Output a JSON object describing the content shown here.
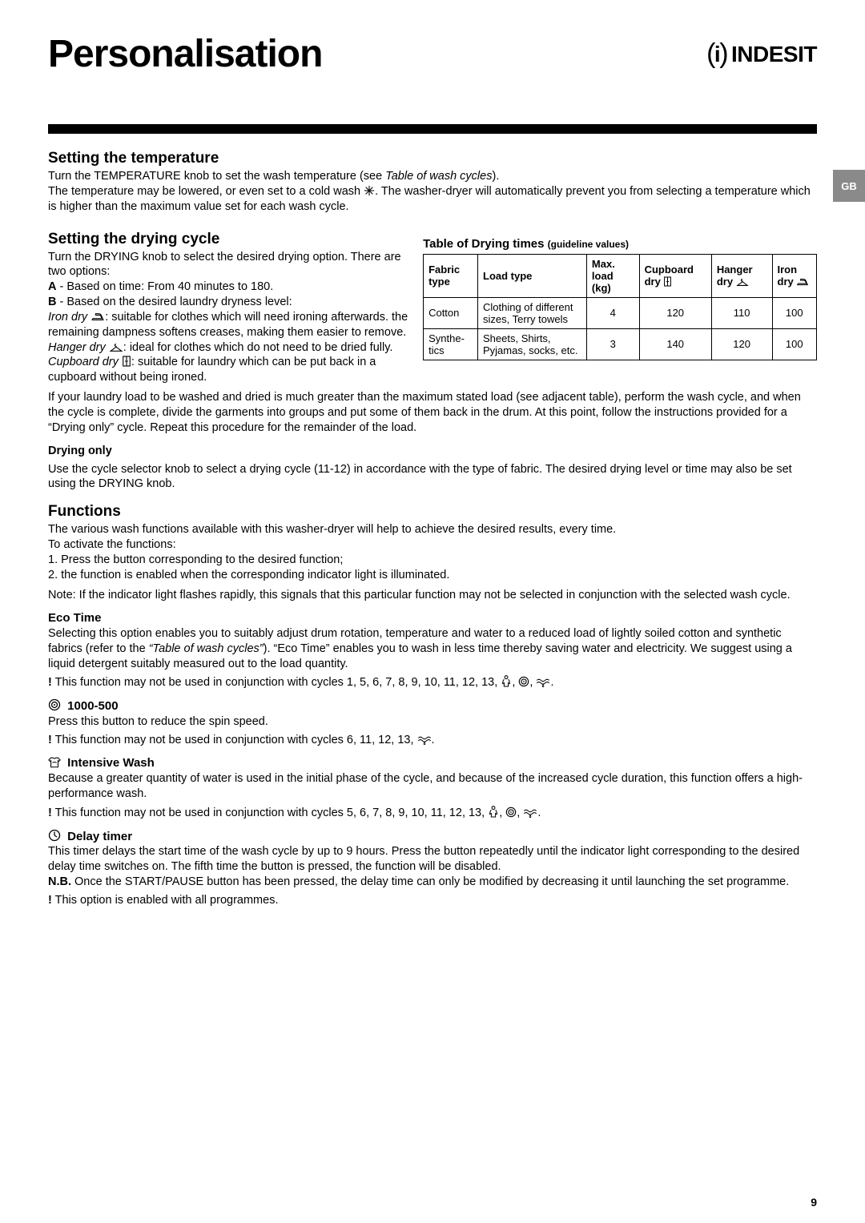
{
  "title": "Personalisation",
  "brand": "INDESIT",
  "side_tab": "GB",
  "page_number": "9",
  "sections": {
    "temp": {
      "heading": "Setting the temperature",
      "p1_a": "Turn the TEMPERATURE knob to set the wash temperature (see ",
      "p1_i": "Table of wash cycles",
      "p1_b": ").",
      "p2_a": "The temperature may be lowered, or even set to a cold wash ",
      "p2_b": ". The washer-dryer will automatically prevent you from selecting a temperature which is higher than the maximum value set for each wash cycle."
    },
    "drying": {
      "heading": "Setting the drying cycle",
      "p1": "Turn the DRYING knob to select the desired drying option. There are two options:",
      "a_label": "A",
      "a_text": " - Based on time: From 40 minutes to 180.",
      "b_label": "B",
      "b_text": " - Based on the desired laundry dryness level:",
      "iron_i": "Iron dry ",
      "iron_t": ": suitable for clothes which will need ironing afterwards. the remaining dampness softens creases, making them easier to remove.",
      "hanger_i": "Hanger dry ",
      "hanger_t": ": ideal for clothes which do not need to be dried fully.",
      "cupboard_i": "Cupboard dry ",
      "cupboard_t": ": suitable for laundry which can be put back in a cupboard without being ironed.",
      "extra": "If your laundry load to be washed and dried is much greater than the maximum stated load (see adjacent table), perform the wash cycle, and when the cycle is complete, divide the garments into groups and put some of them back in the drum. At this point, follow the instructions provided for a “Drying only” cycle. Repeat this procedure for the remainder of the load.",
      "donly_h": "Drying only",
      "donly_t": "Use the cycle selector knob to select a drying cycle (11-12) in accordance with the type of fabric. The desired drying level or time may also be set using the DRYING knob."
    },
    "table": {
      "title": "Table of Drying times ",
      "title_small": "(guideline values)",
      "headers": {
        "fabric": "Fabric type",
        "load": "Load type",
        "max": "Max. load (kg)",
        "cupboard": "Cupboard dry ",
        "hanger": "Hanger dry ",
        "iron": "Iron dry "
      },
      "rows": [
        {
          "fabric": "Cotton",
          "load": "Clothing of different sizes, Terry towels",
          "max": "4",
          "cupboard": "120",
          "hanger": "110",
          "iron": "100"
        },
        {
          "fabric": "Synthe­tics",
          "load": "Sheets, Shirts, Pyjamas, socks, etc.",
          "max": "3",
          "cupboard": "140",
          "hanger": "120",
          "iron": "100"
        }
      ]
    },
    "functions": {
      "heading": "Functions",
      "intro": "The various wash functions available with this washer-dryer will help to achieve the desired results, every time.",
      "to_activate": "To activate the functions:",
      "s1": "1. Press the button corresponding to the desired function;",
      "s2": "2. the function is enabled when the corresponding indicator light is illuminated.",
      "note": "Note: If the indicator light flashes rapidly, this signals that this particular function may not be selected in conjunction with the selected wash cycle.",
      "eco_h": "Eco Time",
      "eco_p_a": "Selecting this option enables you to suitably adjust drum rotation, temperature and water to a reduced load of lightly soiled cotton and synthetic fabrics (refer to the ",
      "eco_p_i": "“Table of wash cycles”",
      "eco_p_b": "). “Eco Time” enables you to wash in less time thereby saving water and electricity. We suggest using a liquid detergent suitably measured out to the load quantity.",
      "eco_bang_a": " This function may not be used in conjunction with cycles 1, 5, 6, 7, 8, 9, 10, 11, 12, 13, ",
      "eco_bang_b": ", ",
      "eco_bang_c": ", ",
      "eco_bang_d": ".",
      "spin_h": " 1000-500",
      "spin_p": "Press this button to reduce the spin speed.",
      "spin_bang_a": " This function may not be used in conjunction with cycles 6, 11, 12, 13, ",
      "spin_bang_b": ".",
      "intense_h": " Intensive Wash",
      "intense_p": "Because a greater quantity of water is used in the initial phase of the cycle, and because of the increased cycle duration, this function offers a high-performance wash.",
      "intense_bang_a": " This function may not be used in conjunction with cycles 5, 6, 7, 8, 9, 10, 11, 12, 13, ",
      "intense_bang_b": ", ",
      "intense_bang_c": ", ",
      "intense_bang_d": ".",
      "delay_h": " Delay timer",
      "delay_p1": "This timer delays the start time of the wash cycle by up to 9 hours. Press the button repeatedly until the indicator light corresponding to the desired delay time switches on. The fifth time the button is pressed, the function will be disabled.",
      "delay_nb": "N.B.",
      "delay_p2": " Once the START/PAUSE button has been pressed, the delay time can only be modified by decreasing it until launching the set programme.",
      "delay_bang": "  This option is enabled with all programmes."
    }
  }
}
